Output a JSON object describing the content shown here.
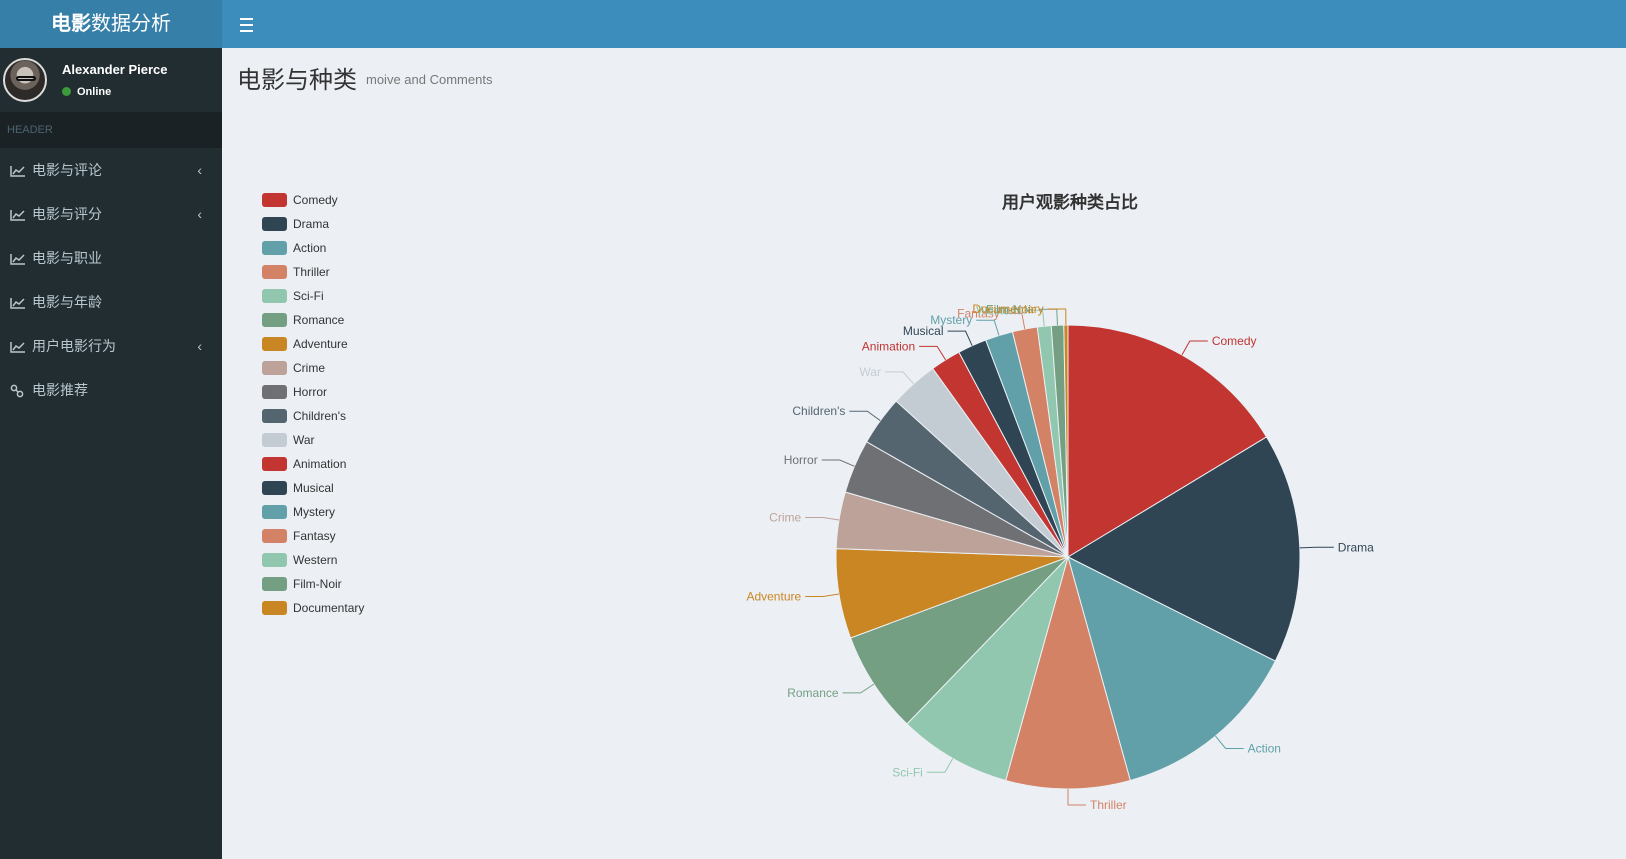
{
  "app": {
    "title_bold": "电影",
    "title_rest": "数据分析"
  },
  "user": {
    "name": "Alexander Pierce",
    "status": "Online"
  },
  "sidebar": {
    "header": "HEADER",
    "items": [
      {
        "label": "电影与评论",
        "icon": "line-chart-icon",
        "has_submenu": true
      },
      {
        "label": "电影与评分",
        "icon": "line-chart-icon",
        "has_submenu": true
      },
      {
        "label": "电影与职业",
        "icon": "line-chart-icon",
        "has_submenu": false
      },
      {
        "label": "电影与年龄",
        "icon": "line-chart-icon",
        "has_submenu": false
      },
      {
        "label": "用户电影行为",
        "icon": "line-chart-icon",
        "has_submenu": true
      },
      {
        "label": "电影推荐",
        "icon": "link-icon",
        "has_submenu": false
      }
    ]
  },
  "page": {
    "title": "电影与种类",
    "subtitle": "moive and Comments"
  },
  "chart_data": {
    "type": "pie",
    "title": "用户观影种类占比",
    "legend_position": "left",
    "categories": [
      "Comedy",
      "Drama",
      "Action",
      "Thriller",
      "Sci-Fi",
      "Romance",
      "Adventure",
      "Crime",
      "Horror",
      "Children's",
      "War",
      "Animation",
      "Musical",
      "Mystery",
      "Fantasy",
      "Western",
      "Film-Noir",
      "Documentary"
    ],
    "values": [
      17.0,
      16.7,
      13.8,
      9.0,
      8.2,
      7.4,
      6.5,
      4.1,
      3.9,
      3.6,
      3.5,
      2.2,
      2.1,
      2.0,
      1.8,
      1.0,
      0.9,
      0.3
    ],
    "colors": [
      "#c23531",
      "#2f4554",
      "#61a0a8",
      "#d48265",
      "#91c7ae",
      "#749f83",
      "#ca8622",
      "#bda29a",
      "#6e7074",
      "#546570",
      "#c4ccd3",
      "#c23531",
      "#2f4554",
      "#61a0a8",
      "#d48265",
      "#91c7ae",
      "#749f83",
      "#ca8622"
    ]
  }
}
